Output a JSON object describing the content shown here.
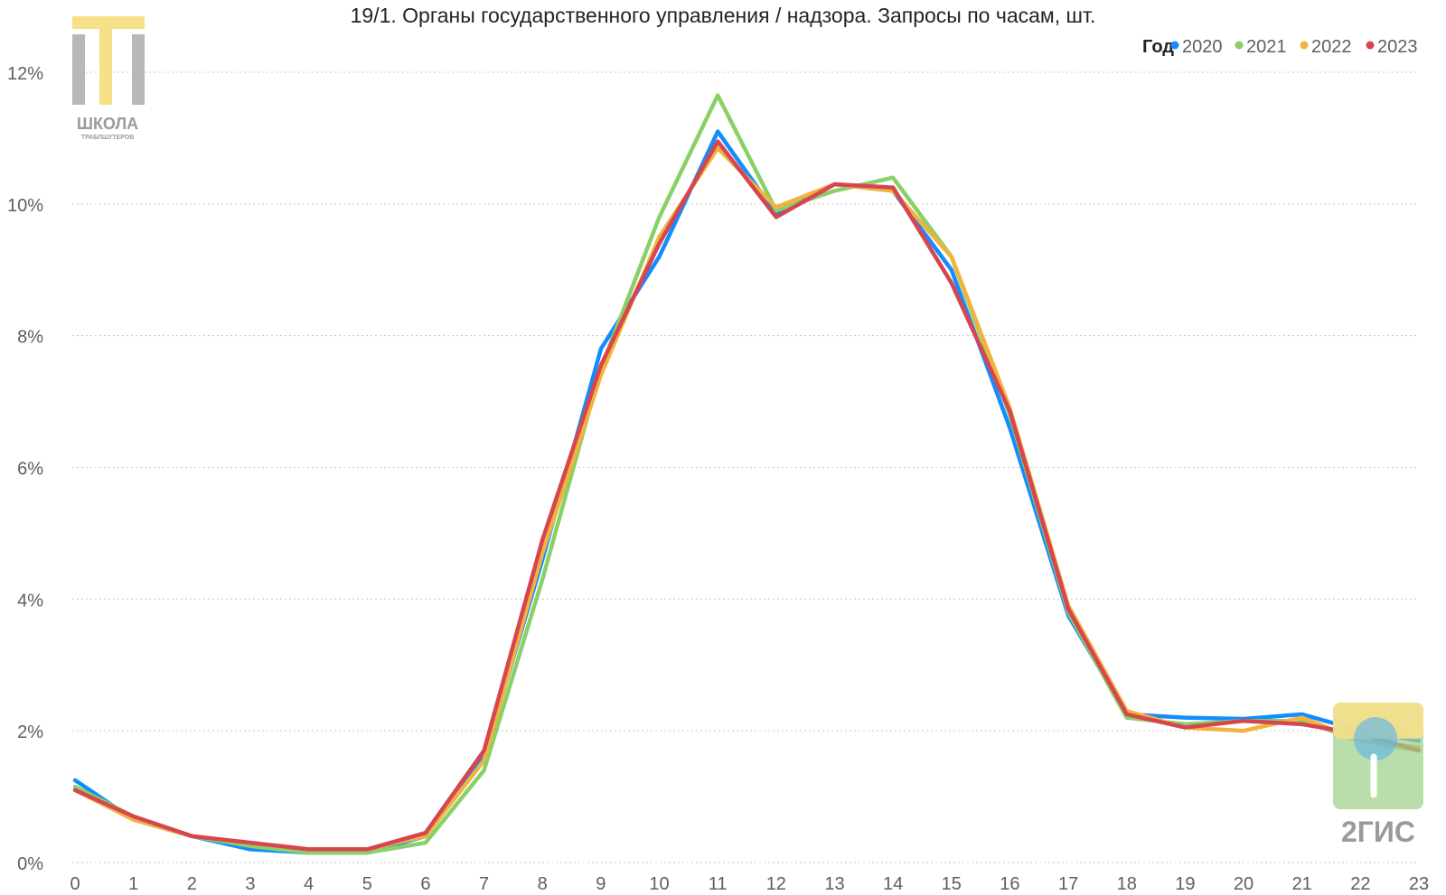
{
  "chart_data": {
    "type": "line",
    "title": "19/1. Органы государственного управления / надзора. Запросы по часам, шт.",
    "xlabel": "",
    "ylabel": "",
    "x": [
      0,
      1,
      2,
      3,
      4,
      5,
      6,
      7,
      8,
      9,
      10,
      11,
      12,
      13,
      14,
      15,
      16,
      17,
      18,
      19,
      20,
      21,
      22,
      23
    ],
    "ylim": [
      0,
      12
    ],
    "y_ticks": [
      0,
      2,
      4,
      6,
      8,
      10,
      12
    ],
    "y_tick_labels": [
      "0%",
      "2%",
      "4%",
      "6%",
      "8%",
      "10%",
      "12%"
    ],
    "grid": true,
    "legend": {
      "title": "Год",
      "placement": "top-right"
    },
    "series": [
      {
        "name": "2020",
        "color": "#118dff",
        "values": [
          1.25,
          0.65,
          0.4,
          0.2,
          0.15,
          0.15,
          0.4,
          1.6,
          4.6,
          7.8,
          9.2,
          11.1,
          9.85,
          10.3,
          10.2,
          9.0,
          6.6,
          3.75,
          2.25,
          2.2,
          2.18,
          2.25,
          2.0,
          1.85
        ]
      },
      {
        "name": "2021",
        "color": "#8ad068",
        "values": [
          1.15,
          0.7,
          0.4,
          0.25,
          0.15,
          0.15,
          0.3,
          1.4,
          4.3,
          7.5,
          9.8,
          11.65,
          9.9,
          10.2,
          10.4,
          9.2,
          6.8,
          3.8,
          2.2,
          2.1,
          2.15,
          2.15,
          1.85,
          1.7
        ]
      },
      {
        "name": "2022",
        "color": "#f2b33d",
        "values": [
          1.1,
          0.65,
          0.4,
          0.3,
          0.2,
          0.2,
          0.4,
          1.55,
          4.7,
          7.4,
          9.5,
          10.85,
          9.95,
          10.3,
          10.2,
          9.2,
          6.9,
          3.9,
          2.3,
          2.05,
          2.0,
          2.2,
          1.85,
          1.75
        ]
      },
      {
        "name": "2023",
        "color": "#d64550",
        "values": [
          1.1,
          0.7,
          0.4,
          0.3,
          0.2,
          0.2,
          0.45,
          1.7,
          4.9,
          7.55,
          9.4,
          10.95,
          9.8,
          10.3,
          10.25,
          8.8,
          6.85,
          3.85,
          2.25,
          2.05,
          2.15,
          2.1,
          1.95,
          1.7
        ]
      }
    ]
  },
  "logos": {
    "top_left": {
      "text": "ШКОЛА",
      "subtext": "ТРАБЛШУТЕРОВ",
      "colors": {
        "accent": "#f7e08a",
        "gray": "#b8b8b8"
      }
    },
    "bottom_right": {
      "text": "2ГИС",
      "colors": {
        "yellow": "#f6e08b",
        "green": "#9fd18b",
        "blue": "#61b5e6",
        "gray": "#9b9b9b"
      }
    }
  }
}
